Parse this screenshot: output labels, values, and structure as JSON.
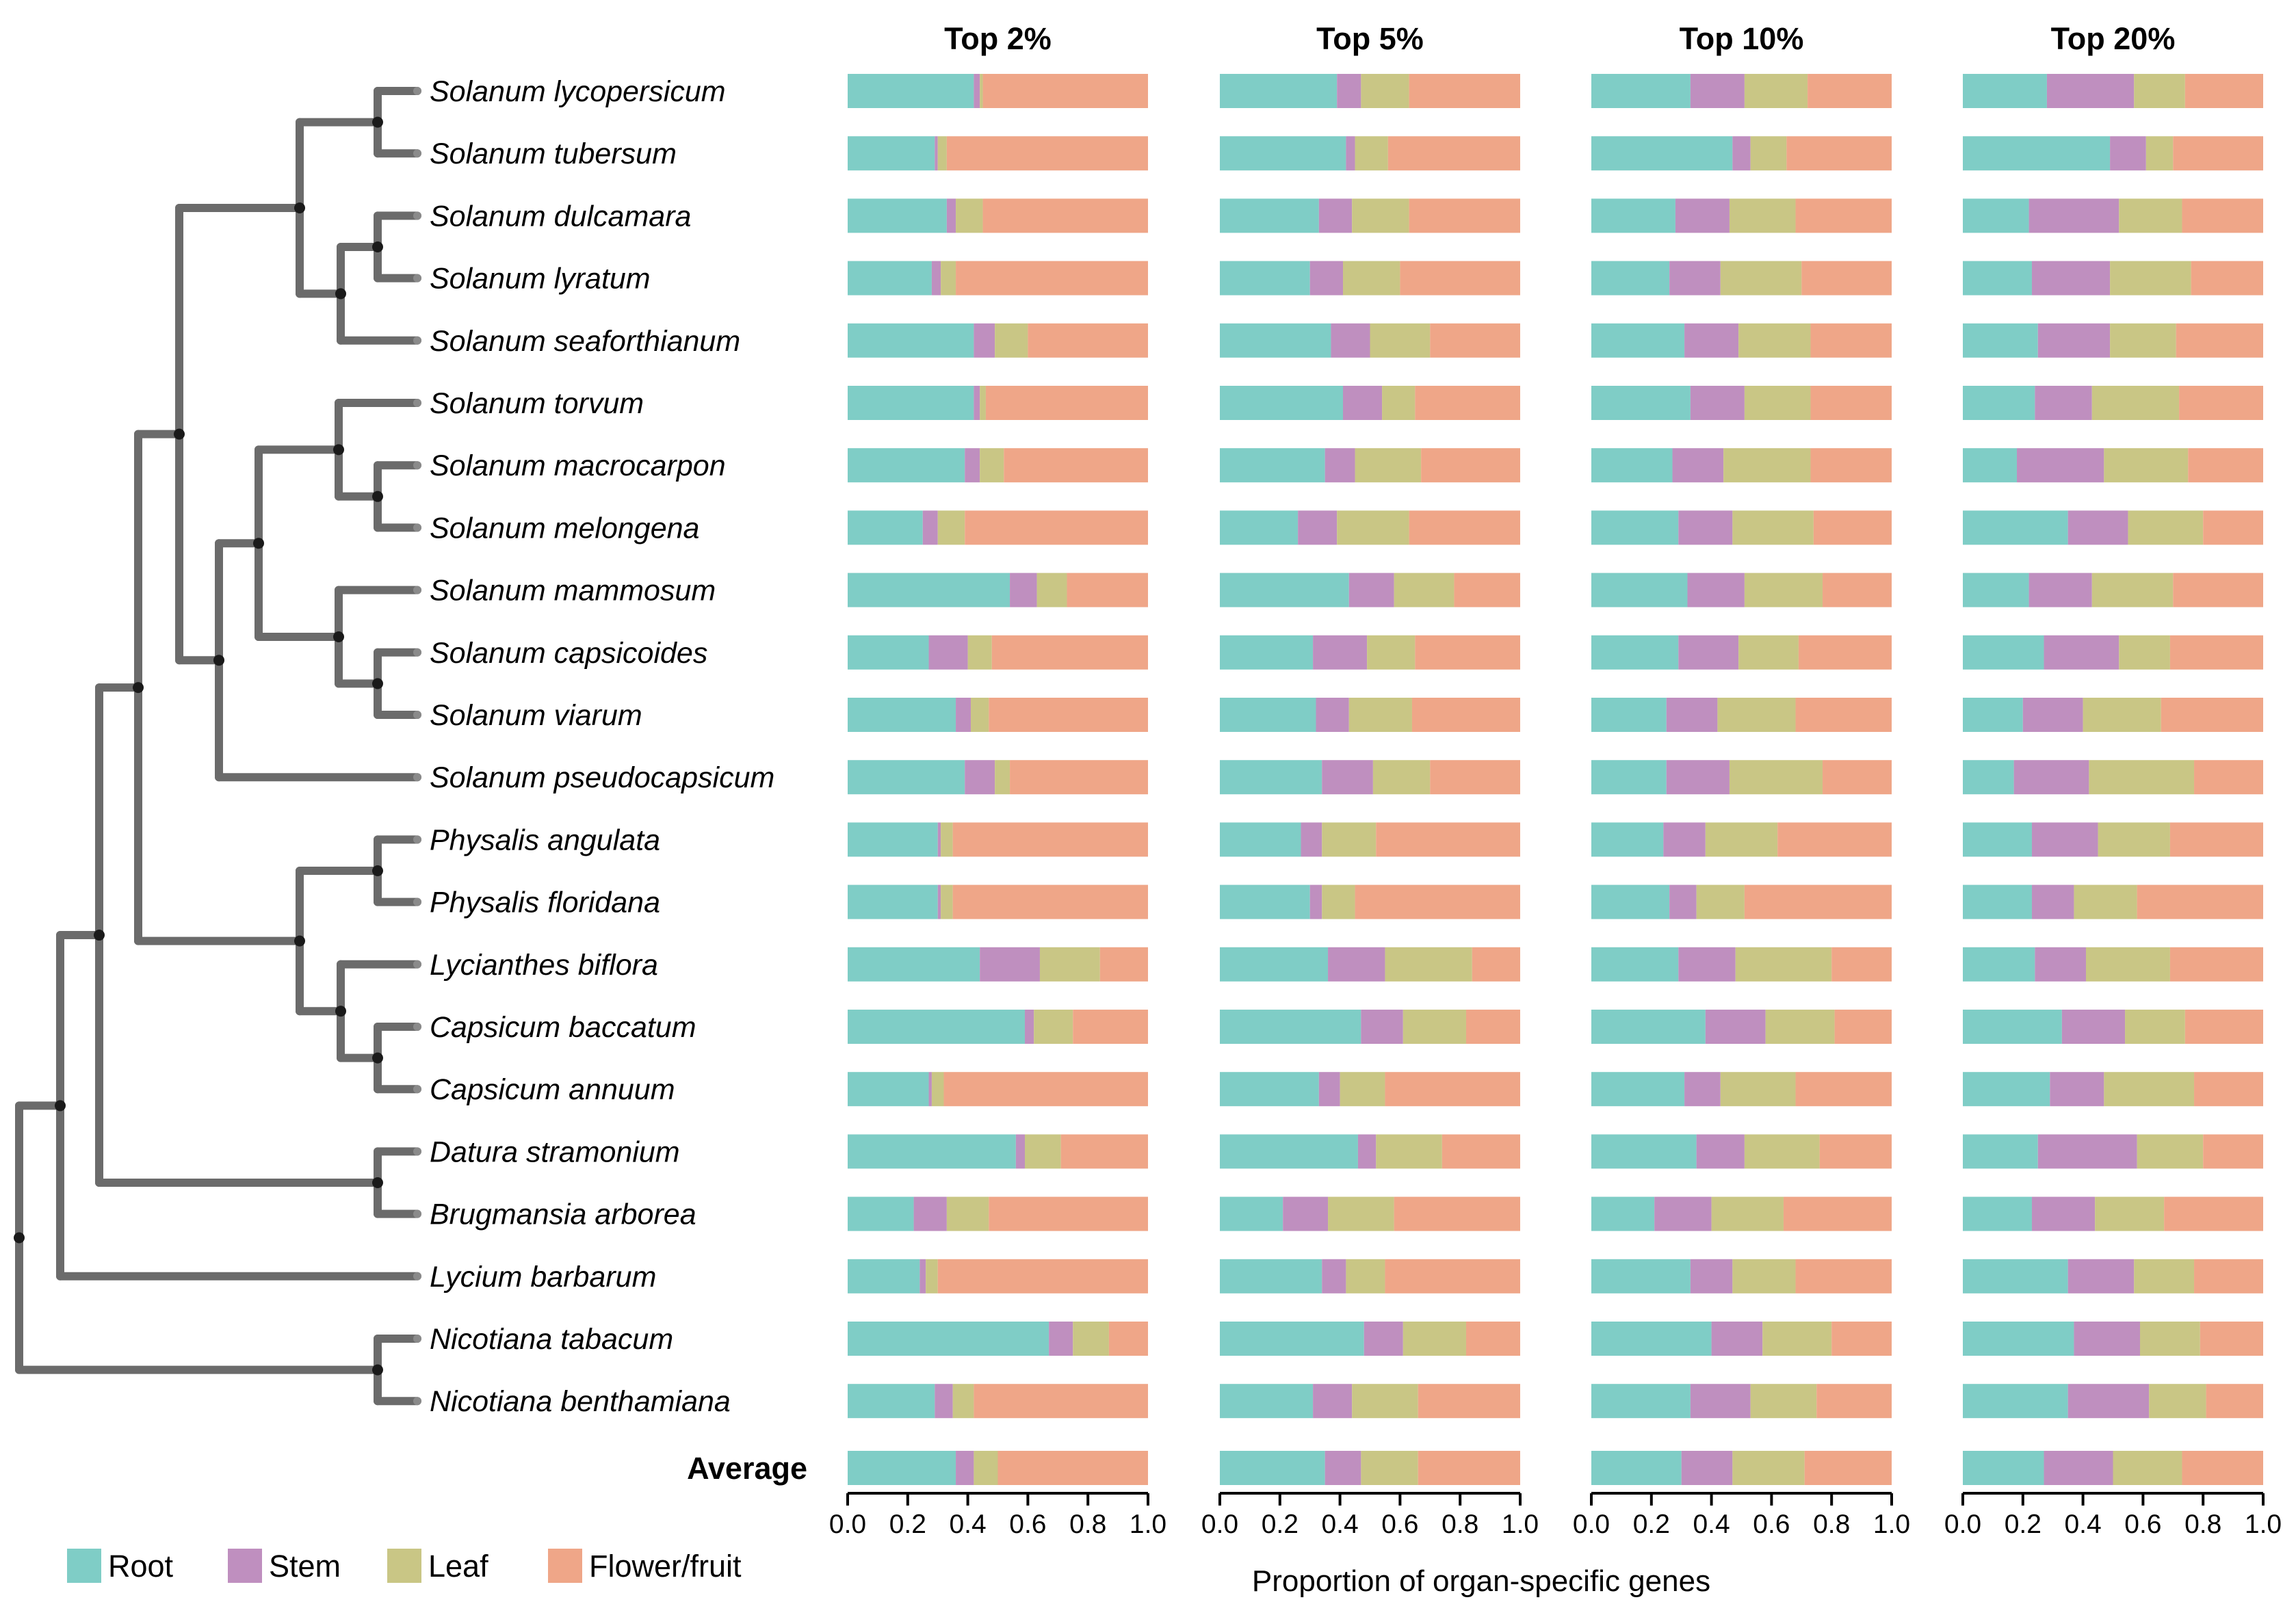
{
  "chart_data": {
    "type": "bar",
    "orientation": "horizontal-stacked",
    "xlabel": "Proportion of organ-specific genes",
    "xlim": [
      0.0,
      1.0
    ],
    "xticks": [
      "0.0",
      "0.2",
      "0.4",
      "0.6",
      "0.8",
      "1.0"
    ],
    "panels": [
      "Top 2%",
      "Top 5%",
      "Top 10%",
      "Top 20%"
    ],
    "organs": [
      {
        "name": "Root",
        "color": "#7fcdc6"
      },
      {
        "name": "Stem",
        "color": "#bf8fbf"
      },
      {
        "name": "Leaf",
        "color": "#c9c685"
      },
      {
        "name": "Flower/fruit",
        "color": "#efa688"
      }
    ],
    "species": [
      "Solanum lycopersicum",
      "Solanum tubersum",
      "Solanum dulcamara",
      "Solanum lyratum",
      "Solanum seaforthianum",
      "Solanum torvum",
      "Solanum macrocarpon",
      "Solanum melongena",
      "Solanum mammosum",
      "Solanum capsicoides",
      "Solanum viarum",
      "Solanum pseudocapsicum",
      "Physalis angulata",
      "Physalis floridana",
      "Lycianthes biflora",
      "Capsicum baccatum",
      "Capsicum annuum",
      "Datura stramonium",
      "Brugmansia arborea",
      "Lycium barbarum",
      "Nicotiana tabacum",
      "Nicotiana benthamiana"
    ],
    "average_label": "Average",
    "series": [
      {
        "panel": "Top 2%",
        "rows": [
          [
            0.42,
            0.02,
            0.01,
            0.55
          ],
          [
            0.29,
            0.01,
            0.03,
            0.67
          ],
          [
            0.33,
            0.03,
            0.09,
            0.55
          ],
          [
            0.28,
            0.03,
            0.05,
            0.64
          ],
          [
            0.42,
            0.07,
            0.11,
            0.4
          ],
          [
            0.42,
            0.02,
            0.02,
            0.54
          ],
          [
            0.39,
            0.05,
            0.08,
            0.48
          ],
          [
            0.25,
            0.05,
            0.09,
            0.61
          ],
          [
            0.54,
            0.09,
            0.1,
            0.27
          ],
          [
            0.27,
            0.13,
            0.08,
            0.52
          ],
          [
            0.36,
            0.05,
            0.06,
            0.53
          ],
          [
            0.39,
            0.1,
            0.05,
            0.46
          ],
          [
            0.3,
            0.01,
            0.04,
            0.65
          ],
          [
            0.3,
            0.01,
            0.04,
            0.65
          ],
          [
            0.44,
            0.2,
            0.2,
            0.16
          ],
          [
            0.59,
            0.03,
            0.13,
            0.25
          ],
          [
            0.27,
            0.01,
            0.04,
            0.68
          ],
          [
            0.56,
            0.03,
            0.12,
            0.29
          ],
          [
            0.22,
            0.11,
            0.14,
            0.53
          ],
          [
            0.24,
            0.02,
            0.04,
            0.7
          ],
          [
            0.67,
            0.08,
            0.12,
            0.13
          ],
          [
            0.29,
            0.06,
            0.07,
            0.58
          ],
          [
            0.36,
            0.06,
            0.08,
            0.5
          ]
        ]
      },
      {
        "panel": "Top 5%",
        "rows": [
          [
            0.39,
            0.08,
            0.16,
            0.37
          ],
          [
            0.42,
            0.03,
            0.11,
            0.44
          ],
          [
            0.33,
            0.11,
            0.19,
            0.37
          ],
          [
            0.3,
            0.11,
            0.19,
            0.4
          ],
          [
            0.37,
            0.13,
            0.2,
            0.3
          ],
          [
            0.41,
            0.13,
            0.11,
            0.35
          ],
          [
            0.35,
            0.1,
            0.22,
            0.33
          ],
          [
            0.26,
            0.13,
            0.24,
            0.37
          ],
          [
            0.43,
            0.15,
            0.2,
            0.22
          ],
          [
            0.31,
            0.18,
            0.16,
            0.35
          ],
          [
            0.32,
            0.11,
            0.21,
            0.36
          ],
          [
            0.34,
            0.17,
            0.19,
            0.3
          ],
          [
            0.27,
            0.07,
            0.18,
            0.48
          ],
          [
            0.3,
            0.04,
            0.11,
            0.55
          ],
          [
            0.36,
            0.19,
            0.29,
            0.16
          ],
          [
            0.47,
            0.14,
            0.21,
            0.18
          ],
          [
            0.33,
            0.07,
            0.15,
            0.45
          ],
          [
            0.46,
            0.06,
            0.22,
            0.26
          ],
          [
            0.21,
            0.15,
            0.22,
            0.42
          ],
          [
            0.34,
            0.08,
            0.13,
            0.45
          ],
          [
            0.48,
            0.13,
            0.21,
            0.18
          ],
          [
            0.31,
            0.13,
            0.22,
            0.34
          ],
          [
            0.35,
            0.12,
            0.19,
            0.34
          ]
        ]
      },
      {
        "panel": "Top 10%",
        "rows": [
          [
            0.33,
            0.18,
            0.21,
            0.28
          ],
          [
            0.47,
            0.06,
            0.12,
            0.35
          ],
          [
            0.28,
            0.18,
            0.22,
            0.32
          ],
          [
            0.26,
            0.17,
            0.27,
            0.3
          ],
          [
            0.31,
            0.18,
            0.24,
            0.27
          ],
          [
            0.33,
            0.18,
            0.22,
            0.27
          ],
          [
            0.27,
            0.17,
            0.29,
            0.27
          ],
          [
            0.29,
            0.18,
            0.27,
            0.26
          ],
          [
            0.32,
            0.19,
            0.26,
            0.23
          ],
          [
            0.29,
            0.2,
            0.2,
            0.31
          ],
          [
            0.25,
            0.17,
            0.26,
            0.32
          ],
          [
            0.25,
            0.21,
            0.31,
            0.23
          ],
          [
            0.24,
            0.14,
            0.24,
            0.38
          ],
          [
            0.26,
            0.09,
            0.16,
            0.49
          ],
          [
            0.29,
            0.19,
            0.32,
            0.2
          ],
          [
            0.38,
            0.2,
            0.23,
            0.19
          ],
          [
            0.31,
            0.12,
            0.25,
            0.32
          ],
          [
            0.35,
            0.16,
            0.25,
            0.24
          ],
          [
            0.21,
            0.19,
            0.24,
            0.36
          ],
          [
            0.33,
            0.14,
            0.21,
            0.32
          ],
          [
            0.4,
            0.17,
            0.23,
            0.2
          ],
          [
            0.33,
            0.2,
            0.22,
            0.25
          ],
          [
            0.3,
            0.17,
            0.24,
            0.29
          ]
        ]
      },
      {
        "panel": "Top 20%",
        "rows": [
          [
            0.28,
            0.29,
            0.17,
            0.26
          ],
          [
            0.49,
            0.12,
            0.09,
            0.3
          ],
          [
            0.22,
            0.3,
            0.21,
            0.27
          ],
          [
            0.23,
            0.26,
            0.27,
            0.24
          ],
          [
            0.25,
            0.24,
            0.22,
            0.29
          ],
          [
            0.24,
            0.19,
            0.29,
            0.28
          ],
          [
            0.18,
            0.29,
            0.28,
            0.25
          ],
          [
            0.35,
            0.2,
            0.25,
            0.2
          ],
          [
            0.22,
            0.21,
            0.27,
            0.3
          ],
          [
            0.27,
            0.25,
            0.17,
            0.31
          ],
          [
            0.2,
            0.2,
            0.26,
            0.34
          ],
          [
            0.17,
            0.25,
            0.35,
            0.23
          ],
          [
            0.23,
            0.22,
            0.24,
            0.31
          ],
          [
            0.23,
            0.14,
            0.21,
            0.42
          ],
          [
            0.24,
            0.17,
            0.28,
            0.31
          ],
          [
            0.33,
            0.21,
            0.2,
            0.26
          ],
          [
            0.29,
            0.18,
            0.3,
            0.23
          ],
          [
            0.25,
            0.33,
            0.22,
            0.2
          ],
          [
            0.23,
            0.21,
            0.23,
            0.33
          ],
          [
            0.35,
            0.22,
            0.2,
            0.23
          ],
          [
            0.37,
            0.22,
            0.2,
            0.21
          ],
          [
            0.35,
            0.27,
            0.19,
            0.19
          ],
          [
            0.27,
            0.23,
            0.23,
            0.27
          ]
        ]
      }
    ]
  }
}
